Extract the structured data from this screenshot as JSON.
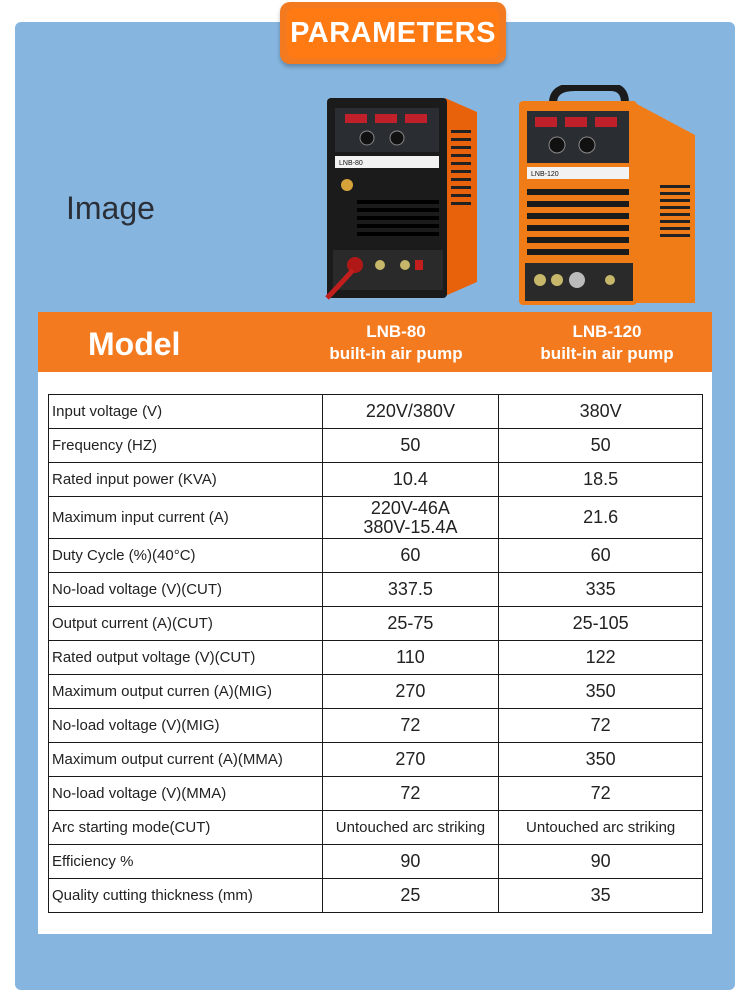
{
  "header": {
    "title": "PARAMETERS"
  },
  "image_label": "Image",
  "products": [
    {
      "panel_label": "LNB-80"
    },
    {
      "panel_label": "LNB-120"
    }
  ],
  "table": {
    "header": {
      "label": "Model",
      "col1_line1": "LNB-80",
      "col1_line2": "built-in air pump",
      "col2_line1": "LNB-120",
      "col2_line2": "built-in air pump"
    },
    "rows": [
      {
        "label": "Input voltage (V)",
        "v1": "220V/380V",
        "v2": "380V"
      },
      {
        "label": "Frequency (HZ)",
        "v1": "50",
        "v2": "50"
      },
      {
        "label": "Rated input power (KVA)",
        "v1": "10.4",
        "v2": "18.5"
      },
      {
        "label": "Maximum input current (A)",
        "v1a": "220V-46A",
        "v1b": "380V-15.4A",
        "v2": "21.6"
      },
      {
        "label": "Duty Cycle (%)(40°C)",
        "v1": "60",
        "v2": "60"
      },
      {
        "label": "No-load voltage (V)(CUT)",
        "v1": "337.5",
        "v2": "335"
      },
      {
        "label": "Output current (A)(CUT)",
        "v1": "25-75",
        "v2": "25-105"
      },
      {
        "label": "Rated output voltage (V)(CUT)",
        "v1": "110",
        "v2": "122"
      },
      {
        "label": "Maximum output curren (A)(MIG)",
        "v1": "270",
        "v2": "350"
      },
      {
        "label": "No-load voltage (V)(MIG)",
        "v1": "72",
        "v2": "72"
      },
      {
        "label": "Maximum output current (A)(MMA)",
        "v1": "270",
        "v2": "350"
      },
      {
        "label": "No-load voltage (V)(MMA)",
        "v1": "72",
        "v2": "72"
      },
      {
        "label": "Arc starting mode(CUT)",
        "v1": "Untouched arc striking",
        "v2": "Untouched arc striking"
      },
      {
        "label": "Efficiency %",
        "v1": "90",
        "v2": "90"
      },
      {
        "label": "Quality cutting thickness (mm)",
        "v1": "25",
        "v2": "35"
      }
    ]
  }
}
